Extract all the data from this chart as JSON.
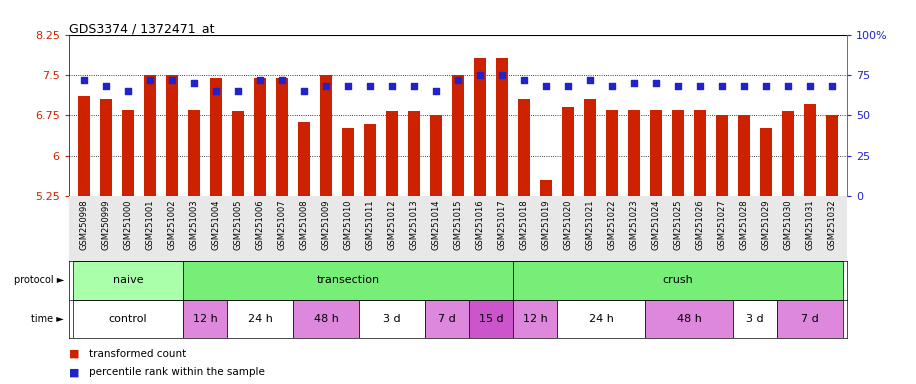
{
  "title": "GDS3374 / 1372471_at",
  "samples": [
    "GSM250998",
    "GSM250999",
    "GSM251000",
    "GSM251001",
    "GSM251002",
    "GSM251003",
    "GSM251004",
    "GSM251005",
    "GSM251006",
    "GSM251007",
    "GSM251008",
    "GSM251009",
    "GSM251010",
    "GSM251011",
    "GSM251012",
    "GSM251013",
    "GSM251014",
    "GSM251015",
    "GSM251016",
    "GSM251017",
    "GSM251018",
    "GSM251019",
    "GSM251020",
    "GSM251021",
    "GSM251022",
    "GSM251023",
    "GSM251024",
    "GSM251025",
    "GSM251026",
    "GSM251027",
    "GSM251028",
    "GSM251029",
    "GSM251030",
    "GSM251031",
    "GSM251032"
  ],
  "bar_values": [
    7.1,
    7.05,
    6.85,
    7.5,
    7.5,
    6.85,
    7.45,
    6.82,
    7.45,
    7.45,
    6.62,
    7.5,
    6.52,
    6.58,
    6.82,
    6.82,
    6.75,
    7.5,
    7.82,
    7.82,
    7.05,
    5.55,
    6.9,
    7.05,
    6.85,
    6.85,
    6.85,
    6.85,
    6.85,
    6.75,
    6.75,
    6.52,
    6.82,
    6.96,
    6.75
  ],
  "percentile_values": [
    72,
    68,
    65,
    72,
    72,
    70,
    65,
    65,
    72,
    72,
    65,
    68,
    68,
    68,
    68,
    68,
    65,
    72,
    75,
    75,
    72,
    68,
    68,
    72,
    68,
    70,
    70,
    68,
    68,
    68,
    68,
    68,
    68,
    68,
    68
  ],
  "ylim_left": [
    5.25,
    8.25
  ],
  "ylim_right": [
    0,
    100
  ],
  "yticks_left": [
    5.25,
    6.0,
    6.75,
    7.5,
    8.25
  ],
  "yticks_right": [
    0,
    25,
    50,
    75,
    100
  ],
  "ytick_labels_left": [
    "5.25",
    "6",
    "6.75",
    "7.5",
    "8.25"
  ],
  "ytick_labels_right": [
    "0",
    "25",
    "50",
    "75",
    "100%"
  ],
  "bar_color": "#cc2200",
  "dot_color": "#2222cc",
  "bar_bottom": 5.25,
  "hgrid_lines": [
    6.0,
    6.75,
    7.5
  ],
  "protocol_groups": [
    {
      "label": "naive",
      "start": 0,
      "end": 5,
      "color": "#aaffaa"
    },
    {
      "label": "transection",
      "start": 5,
      "end": 20,
      "color": "#77ee77"
    },
    {
      "label": "crush",
      "start": 20,
      "end": 35,
      "color": "#77ee77"
    }
  ],
  "time_groups": [
    {
      "label": "control",
      "start": 0,
      "end": 5,
      "color": "#ffffff"
    },
    {
      "label": "12 h",
      "start": 5,
      "end": 7,
      "color": "#dd88dd"
    },
    {
      "label": "24 h",
      "start": 7,
      "end": 10,
      "color": "#ffffff"
    },
    {
      "label": "48 h",
      "start": 10,
      "end": 13,
      "color": "#dd88dd"
    },
    {
      "label": "3 d",
      "start": 13,
      "end": 16,
      "color": "#ffffff"
    },
    {
      "label": "7 d",
      "start": 16,
      "end": 18,
      "color": "#dd88dd"
    },
    {
      "label": "15 d",
      "start": 18,
      "end": 20,
      "color": "#cc55cc"
    },
    {
      "label": "12 h",
      "start": 20,
      "end": 22,
      "color": "#dd88dd"
    },
    {
      "label": "24 h",
      "start": 22,
      "end": 26,
      "color": "#ffffff"
    },
    {
      "label": "48 h",
      "start": 26,
      "end": 30,
      "color": "#dd88dd"
    },
    {
      "label": "3 d",
      "start": 30,
      "end": 32,
      "color": "#ffffff"
    },
    {
      "label": "7 d",
      "start": 32,
      "end": 35,
      "color": "#dd88dd"
    }
  ],
  "legend_items": [
    {
      "label": "transformed count",
      "color": "#cc2200"
    },
    {
      "label": "percentile rank within the sample",
      "color": "#2222cc"
    }
  ],
  "bg_color": "#ffffff",
  "fig_width": 9.16,
  "fig_height": 3.84,
  "dpi": 100
}
